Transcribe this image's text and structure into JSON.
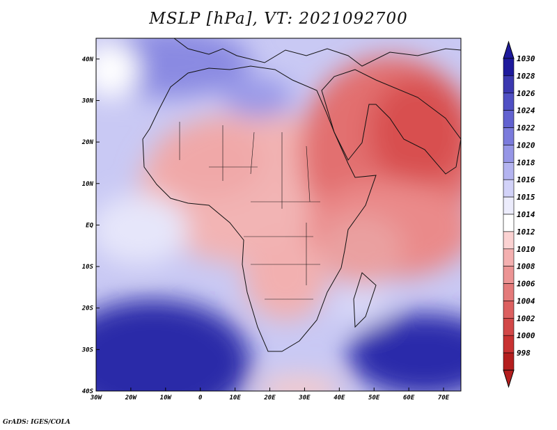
{
  "title": "MSLP [hPa], VT: 2021092700",
  "footer": "GrADS: IGES/COLA",
  "map": {
    "lon_range": [
      -30,
      75
    ],
    "lat_range": [
      -40,
      45
    ],
    "lat_labels": [
      "40N",
      "30N",
      "20N",
      "10N",
      "EQ",
      "10S",
      "20S",
      "30S",
      "40S"
    ],
    "lat_values": [
      40,
      30,
      20,
      10,
      0,
      -10,
      -20,
      -30,
      -40
    ],
    "lon_labels": [
      "30W",
      "20W",
      "10W",
      "0",
      "10E",
      "20E",
      "30E",
      "40E",
      "50E",
      "60E",
      "70E"
    ],
    "lon_values": [
      -30,
      -20,
      -10,
      0,
      10,
      20,
      30,
      40,
      50,
      60,
      70
    ]
  },
  "colorbar": {
    "levels": [
      "1030",
      "1028",
      "1026",
      "1024",
      "1022",
      "1020",
      "1018",
      "1016",
      "1015",
      "1014",
      "1012",
      "1010",
      "1008",
      "1006",
      "1004",
      "1002",
      "1000",
      "998"
    ],
    "colors": [
      "#1e1a9c",
      "#3b38b0",
      "#5050c4",
      "#6262d0",
      "#7b7bdc",
      "#9696e6",
      "#b4b4f0",
      "#d2d2f8",
      "#ececfc",
      "#ffffff",
      "#fbd2d2",
      "#f4b0b0",
      "#ec9494",
      "#e47a7a",
      "#dc6060",
      "#d24848",
      "#c83232",
      "#b41e1e"
    ]
  }
}
